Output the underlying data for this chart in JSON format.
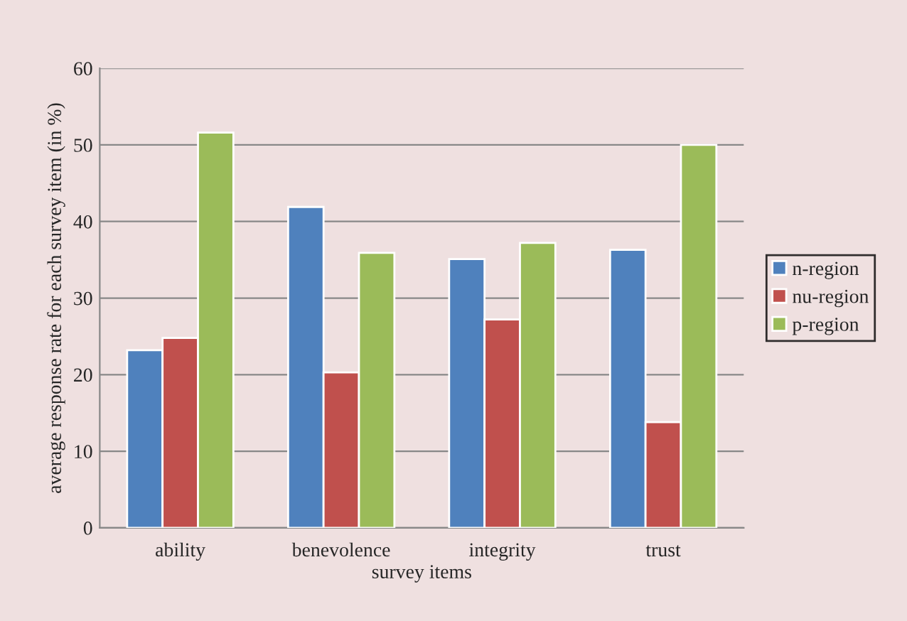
{
  "chart_data": {
    "type": "bar",
    "xlabel": "survey items",
    "ylabel": "average response rate for each survey item (in %)",
    "categories": [
      "ability",
      "benevolence",
      "integrity",
      "trust"
    ],
    "series": [
      {
        "name": "n-region",
        "color": "#4f81bd",
        "values": [
          23.2,
          41.9,
          35.1,
          36.3
        ]
      },
      {
        "name": "nu-region",
        "color": "#c0504d",
        "values": [
          24.8,
          20.3,
          27.2,
          13.8
        ]
      },
      {
        "name": "p-region",
        "color": "#9bbb59",
        "values": [
          51.6,
          35.9,
          37.2,
          50.0
        ]
      }
    ],
    "ylim": [
      0,
      60
    ],
    "yticks": [
      0,
      10,
      20,
      30,
      40,
      50,
      60
    ],
    "grid": "y",
    "legend": "right"
  }
}
